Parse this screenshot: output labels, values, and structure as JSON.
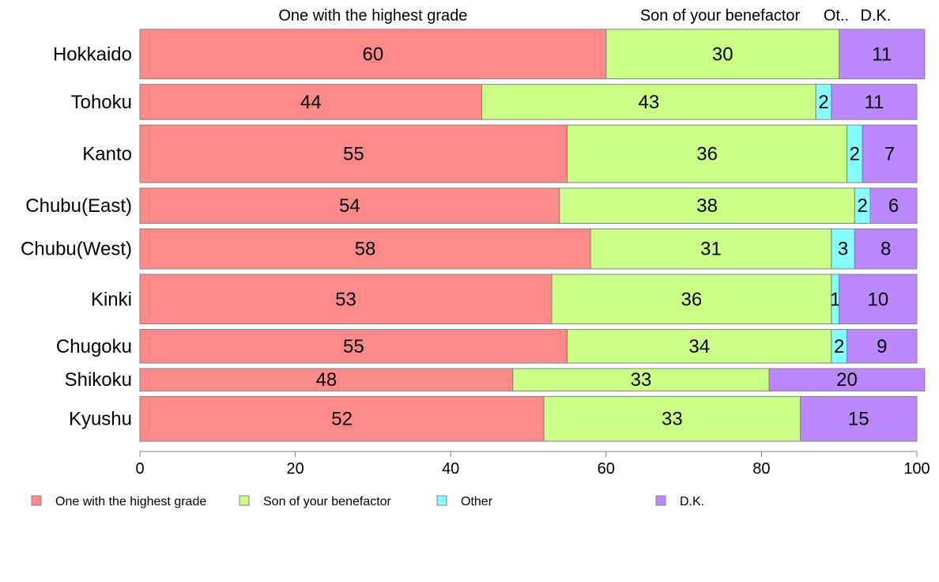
{
  "chart_data": {
    "type": "bar",
    "orientation": "horizontal",
    "stacked": true,
    "categories": [
      "Hokkaido",
      "Tohoku",
      "Kanto",
      "Chubu(East)",
      "Chubu(West)",
      "Kinki",
      "Chugoku",
      "Shikoku",
      "Kyushu"
    ],
    "series": [
      {
        "name": "One with the highest grade",
        "color": "#ff8a8a",
        "values": [
          60,
          44,
          55,
          54,
          58,
          53,
          55,
          48,
          52
        ]
      },
      {
        "name": "Son of your benefactor",
        "color": "#ccff88",
        "values": [
          30,
          43,
          36,
          38,
          31,
          36,
          34,
          33,
          33
        ]
      },
      {
        "name": "Other",
        "color": "#88ffff",
        "values": [
          0,
          2,
          2,
          2,
          3,
          1,
          2,
          0,
          0
        ]
      },
      {
        "name": "D.K.",
        "color": "#bb88ff",
        "values": [
          11,
          11,
          7,
          6,
          8,
          10,
          9,
          20,
          15
        ]
      }
    ],
    "row_weights": [
      31,
      22,
      36,
      22,
      25,
      31,
      21,
      14,
      28
    ],
    "top_labels": [
      "One with the highest grade",
      "Son of your benefactor",
      "Ot..",
      "D.K."
    ],
    "xlim": [
      0,
      100
    ],
    "xticks": [
      "0",
      "20",
      "40",
      "60",
      "80",
      "100"
    ],
    "grid": false,
    "legend_position": "bottom"
  }
}
